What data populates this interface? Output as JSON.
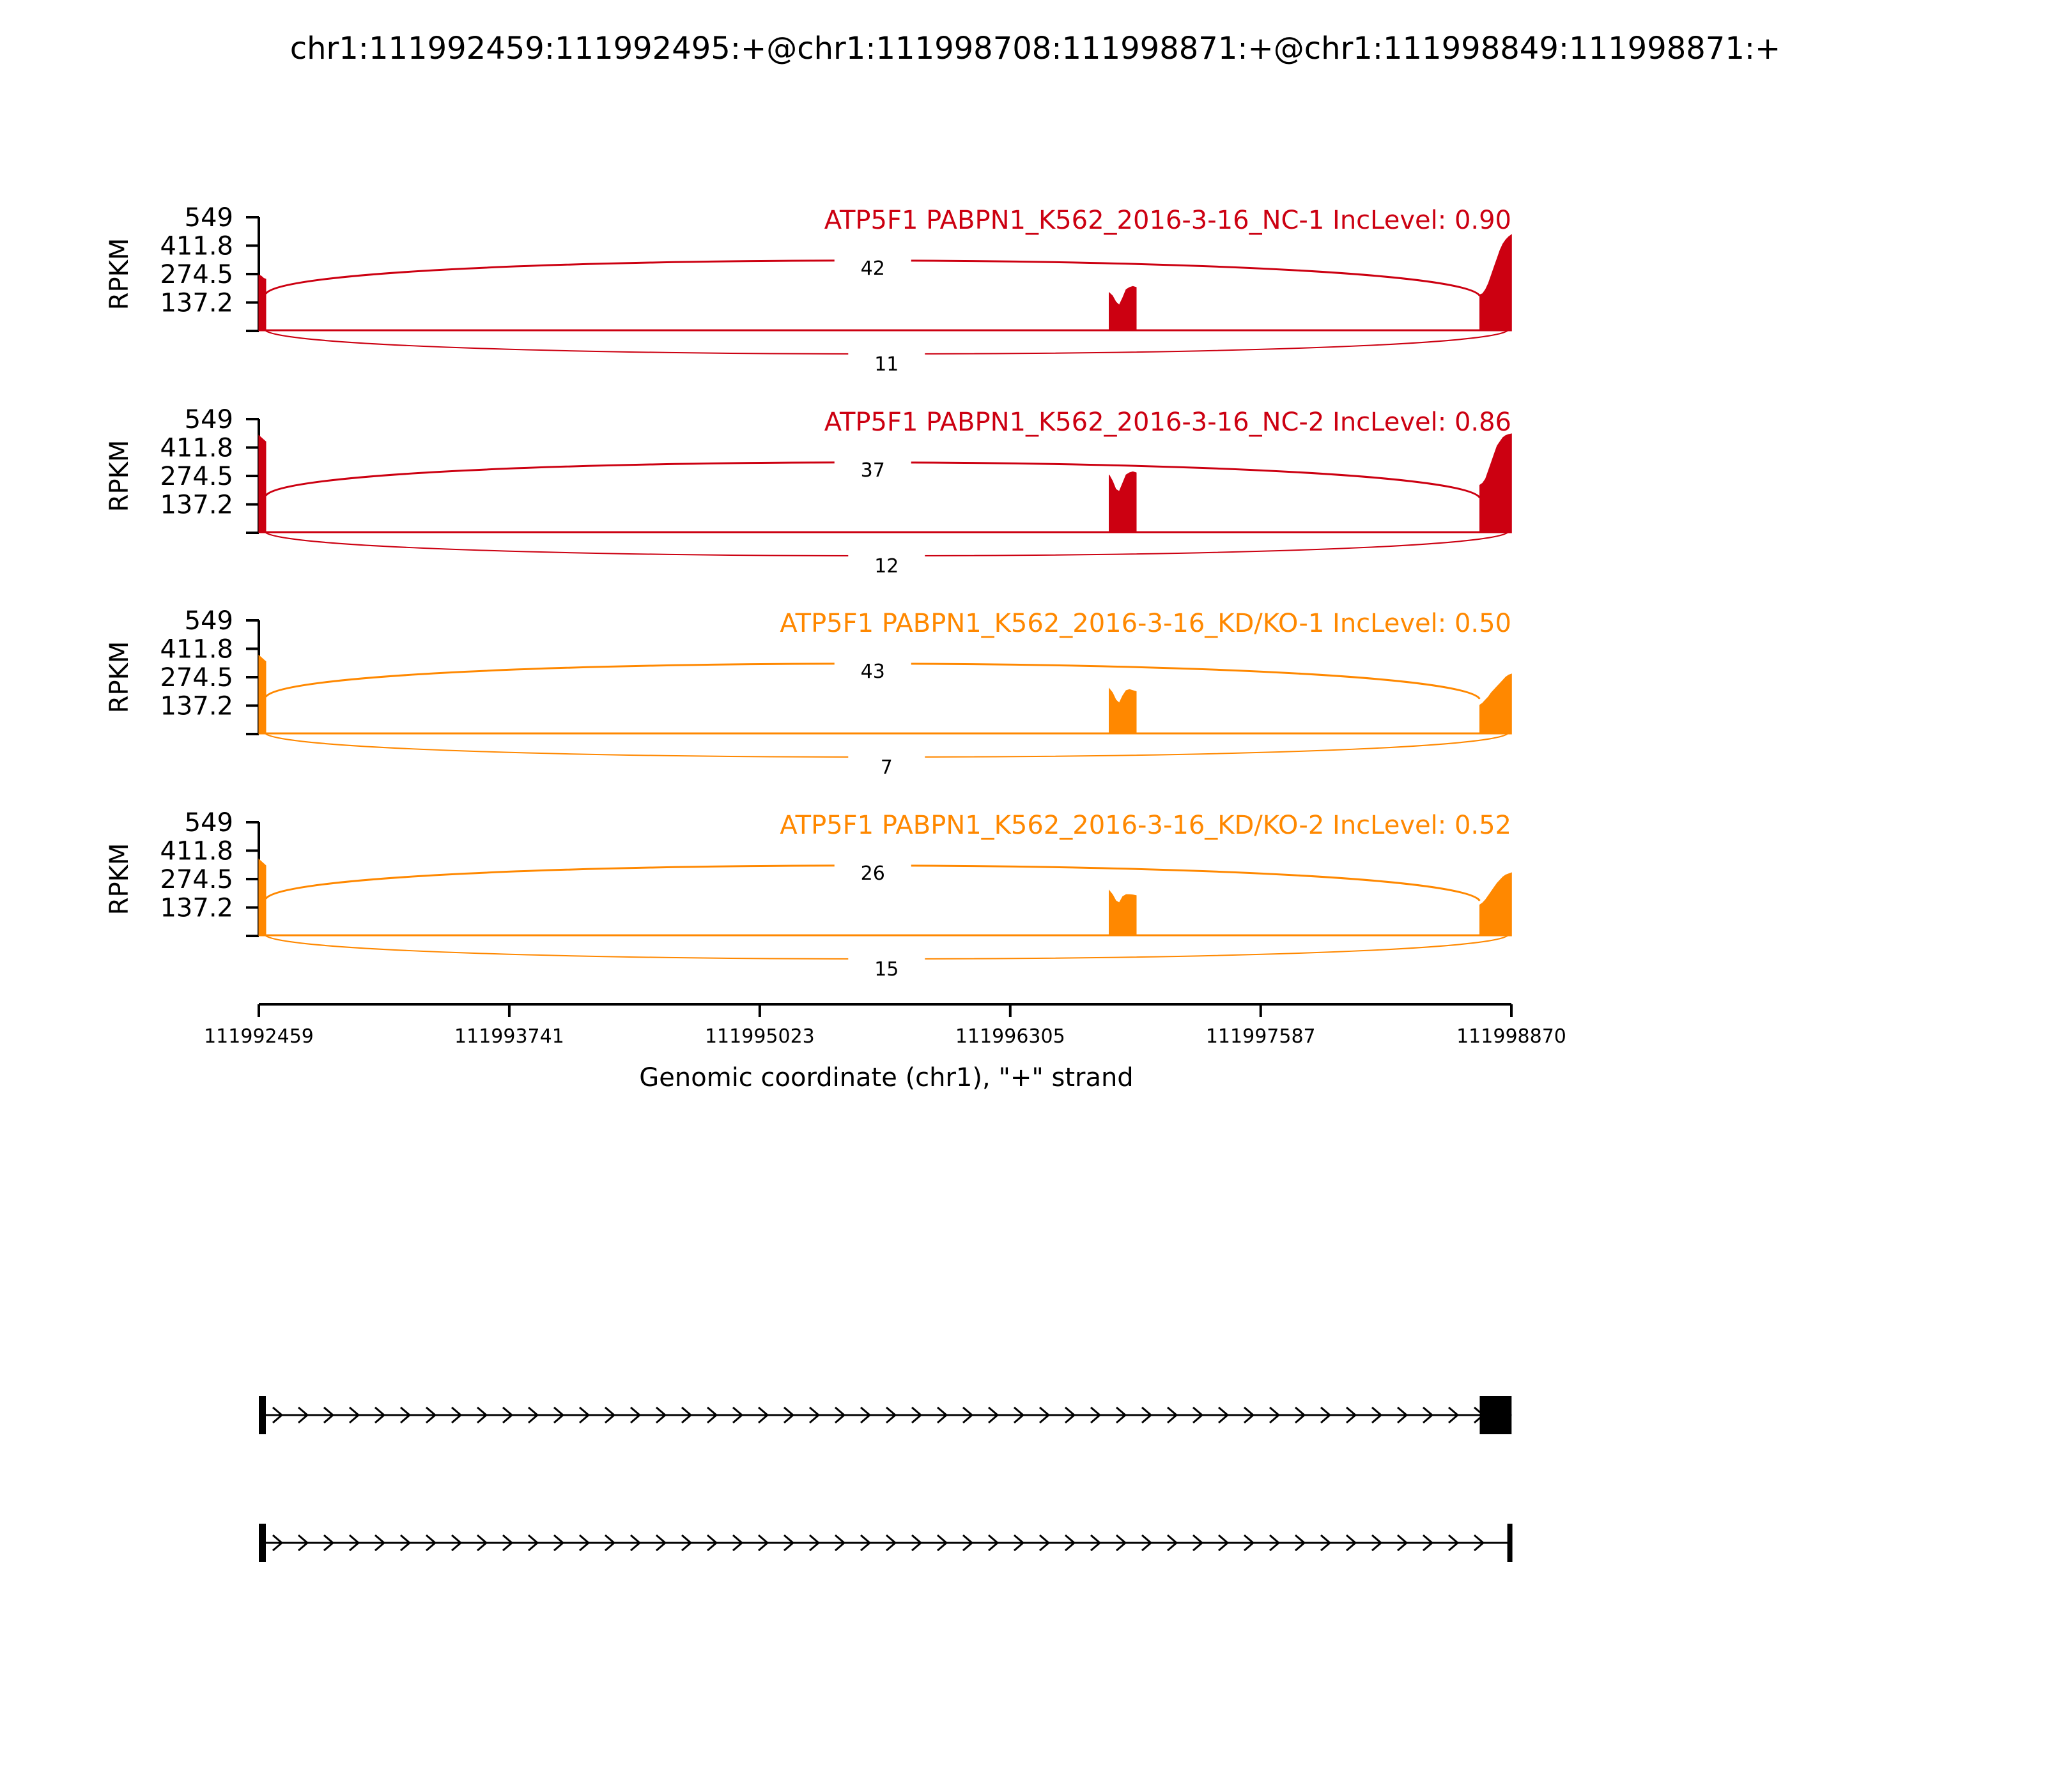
{
  "page": {
    "title": "chr1:111992459:111992495:+@chr1:111998708:111998871:+@chr1:111998849:111998871:+"
  },
  "colors": {
    "nc": "#cc0011",
    "kd": "#ff8800",
    "axis": "#000000"
  },
  "chart_data": {
    "type": "area",
    "subtype": "sashimi-plot",
    "title": "chr1:111992459:111992495:+@chr1:111998708:111998871:+@chr1:111998849:111998871:+",
    "xlabel": "Genomic coordinate (chr1), \"+\" strand",
    "x_ticks": [
      "111992459",
      "111993741",
      "111995023",
      "111996305",
      "111997587",
      "111998870"
    ],
    "xlim": [
      111992459,
      111998870
    ],
    "ylabel": "RPKM",
    "y_ticks": [
      "549",
      "411.8",
      "274.5",
      "137.2"
    ],
    "ylim": [
      0,
      549
    ],
    "tracks": [
      {
        "label": "ATP5F1 PABPN1_K562_2016-3-16_NC-1 IncLevel: 0.90",
        "group": "nc",
        "coverage": [
          {
            "start": 111992459,
            "end": 111992495,
            "values": [
              270,
              265,
              255,
              250
            ]
          },
          {
            "start": 111996811,
            "end": 111996950,
            "values": [
              185,
              170,
              140,
              125,
              160,
              200,
              210,
              215,
              210
            ]
          },
          {
            "start": 111998708,
            "end": 111998871,
            "values": [
              175,
              180,
              200,
              230,
              270,
              310,
              350,
              390,
              420,
              440,
              455,
              465
            ]
          }
        ],
        "junctions": [
          {
            "from": 111992495,
            "to": 111998708,
            "count": "42",
            "side": "top"
          },
          {
            "from": 111992495,
            "to": 111998849,
            "count": "11",
            "side": "bottom"
          }
        ]
      },
      {
        "label": "ATP5F1 PABPN1_K562_2016-3-16_NC-2 IncLevel: 0.86",
        "group": "nc",
        "coverage": [
          {
            "start": 111992459,
            "end": 111992495,
            "values": [
              470,
              460,
              450,
              440
            ]
          },
          {
            "start": 111996811,
            "end": 111996950,
            "values": [
              280,
              250,
              210,
              200,
              240,
              280,
              290,
              295,
              290
            ]
          },
          {
            "start": 111998708,
            "end": 111998871,
            "values": [
              230,
              240,
              260,
              300,
              340,
              380,
              420,
              440,
              460,
              470,
              475,
              478
            ]
          }
        ],
        "junctions": [
          {
            "from": 111992495,
            "to": 111998708,
            "count": "37",
            "side": "top"
          },
          {
            "from": 111992495,
            "to": 111998849,
            "count": "12",
            "side": "bottom"
          }
        ]
      },
      {
        "label": "ATP5F1 PABPN1_K562_2016-3-16_KD/KO-1 IncLevel: 0.50",
        "group": "kd",
        "coverage": [
          {
            "start": 111992459,
            "end": 111992495,
            "values": [
              380,
              370,
              360,
              350
            ]
          },
          {
            "start": 111996811,
            "end": 111996950,
            "values": [
              220,
              200,
              165,
              150,
              185,
              210,
              215,
              210,
              205
            ]
          },
          {
            "start": 111998708,
            "end": 111998871,
            "values": [
              140,
              150,
              165,
              180,
              200,
              215,
              230,
              245,
              260,
              275,
              285,
              290
            ]
          }
        ],
        "junctions": [
          {
            "from": 111992495,
            "to": 111998708,
            "count": "43",
            "side": "top"
          },
          {
            "from": 111992495,
            "to": 111998849,
            "count": "7",
            "side": "bottom"
          }
        ]
      },
      {
        "label": "ATP5F1 PABPN1_K562_2016-3-16_KD/KO-2 IncLevel: 0.52",
        "group": "kd",
        "coverage": [
          {
            "start": 111992459,
            "end": 111992495,
            "values": [
              370,
              360,
              350,
              340
            ]
          },
          {
            "start": 111996811,
            "end": 111996950,
            "values": [
              220,
              200,
              170,
              160,
              190,
              200,
              200,
              198,
              195
            ]
          },
          {
            "start": 111998708,
            "end": 111998871,
            "values": [
              150,
              160,
              175,
              195,
              215,
              235,
              255,
              270,
              285,
              295,
              300,
              305
            ]
          }
        ],
        "junctions": [
          {
            "from": 111992495,
            "to": 111998708,
            "count": "26",
            "side": "top"
          },
          {
            "from": 111992495,
            "to": 111998849,
            "count": "15",
            "side": "bottom"
          }
        ]
      }
    ],
    "isoforms": [
      {
        "exons": [
          {
            "start": 111992459,
            "end": 111992495
          },
          {
            "start": 111998708,
            "end": 111998871
          }
        ]
      },
      {
        "exons": [
          {
            "start": 111992459,
            "end": 111992495
          },
          {
            "start": 111998849,
            "end": 111998871
          }
        ]
      }
    ]
  }
}
